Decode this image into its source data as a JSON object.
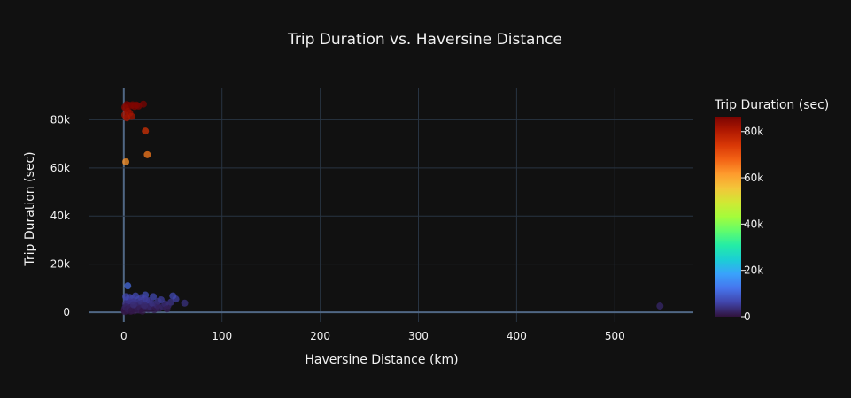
{
  "chart_data": {
    "type": "scatter",
    "title": "Trip Duration vs. Haversine Distance",
    "xlabel": "Haversine Distance (km)",
    "ylabel": "Trip Duration (sec)",
    "xlim": [
      -35,
      580
    ],
    "ylim": [
      -4000,
      93000
    ],
    "x_ticks": [
      0,
      100,
      200,
      300,
      400,
      500
    ],
    "x_tick_labels": [
      "0",
      "100",
      "200",
      "300",
      "400",
      "500"
    ],
    "y_ticks": [
      0,
      20000,
      40000,
      60000,
      80000
    ],
    "y_tick_labels": [
      "0",
      "20k",
      "40k",
      "60k",
      "80k"
    ],
    "grid": true,
    "colorbar": {
      "title": "Trip Duration (sec)",
      "range": [
        0,
        86400
      ],
      "ticks": [
        0,
        20000,
        40000,
        60000,
        80000
      ],
      "tick_labels": [
        "0",
        "20k",
        "40k",
        "60k",
        "80k"
      ],
      "colorscale": [
        "#30123b",
        "#4145ab",
        "#4675ed",
        "#39a2fc",
        "#1bcfd4",
        "#24eca6",
        "#61fc6c",
        "#a4fc3b",
        "#d1e834",
        "#f3c63a",
        "#fe9b2d",
        "#f36315",
        "#d93806",
        "#b11901",
        "#7a0402"
      ]
    },
    "points": [
      [
        546,
        2600
      ],
      [
        62,
        3800
      ],
      [
        53,
        5500
      ],
      [
        50,
        6800
      ],
      [
        48,
        4200
      ],
      [
        45,
        2800
      ],
      [
        42,
        3500
      ],
      [
        38,
        5200
      ],
      [
        35,
        4600
      ],
      [
        33,
        1800
      ],
      [
        30,
        6500
      ],
      [
        28,
        3200
      ],
      [
        26,
        4800
      ],
      [
        24,
        2200
      ],
      [
        22,
        7200
      ],
      [
        21,
        5600
      ],
      [
        20,
        3000
      ],
      [
        19,
        1500
      ],
      [
        18,
        6100
      ],
      [
        17,
        4400
      ],
      [
        16,
        2700
      ],
      [
        15,
        5300
      ],
      [
        14,
        3600
      ],
      [
        13,
        1900
      ],
      [
        12,
        6800
      ],
      [
        11,
        4100
      ],
      [
        10,
        2500
      ],
      [
        9,
        5700
      ],
      [
        8,
        3300
      ],
      [
        7,
        1200
      ],
      [
        6,
        6200
      ],
      [
        5,
        4700
      ],
      [
        4,
        2900
      ],
      [
        3,
        5100
      ],
      [
        2,
        3400
      ],
      [
        1,
        1600
      ],
      [
        0.5,
        800
      ],
      [
        4,
        11000
      ],
      [
        2,
        6500
      ],
      [
        6,
        3900
      ],
      [
        8,
        2100
      ],
      [
        10,
        4300
      ],
      [
        12,
        1400
      ],
      [
        14,
        2600
      ],
      [
        16,
        900
      ],
      [
        18,
        3700
      ],
      [
        20,
        2000
      ],
      [
        23,
        4900
      ],
      [
        25,
        1300
      ],
      [
        27,
        2400
      ],
      [
        29,
        3800
      ],
      [
        31,
        1100
      ],
      [
        34,
        2900
      ],
      [
        36,
        1700
      ],
      [
        40,
        2300
      ],
      [
        44,
        1400
      ],
      [
        1,
        300
      ],
      [
        3,
        700
      ],
      [
        5,
        1000
      ],
      [
        7,
        400
      ],
      [
        9,
        1800
      ],
      [
        11,
        600
      ],
      [
        13,
        2300
      ],
      [
        15,
        1100
      ],
      [
        17,
        1700
      ],
      [
        19,
        500
      ],
      [
        21,
        2800
      ],
      [
        2,
        2200
      ],
      [
        4,
        1300
      ],
      [
        6,
        1900
      ],
      [
        8,
        700
      ],
      [
        10,
        3100
      ],
      [
        3,
        86300
      ],
      [
        5,
        86000
      ],
      [
        7,
        85800
      ],
      [
        9,
        86200
      ],
      [
        11,
        85500
      ],
      [
        13,
        86100
      ],
      [
        15,
        85700
      ],
      [
        1,
        85200
      ],
      [
        2,
        84800
      ],
      [
        4,
        83500
      ],
      [
        6,
        82800
      ],
      [
        8,
        81400
      ],
      [
        3,
        80800
      ],
      [
        1,
        82000
      ],
      [
        20,
        86500
      ],
      [
        22,
        75300
      ],
      [
        24,
        65500
      ],
      [
        2,
        62500
      ]
    ]
  }
}
